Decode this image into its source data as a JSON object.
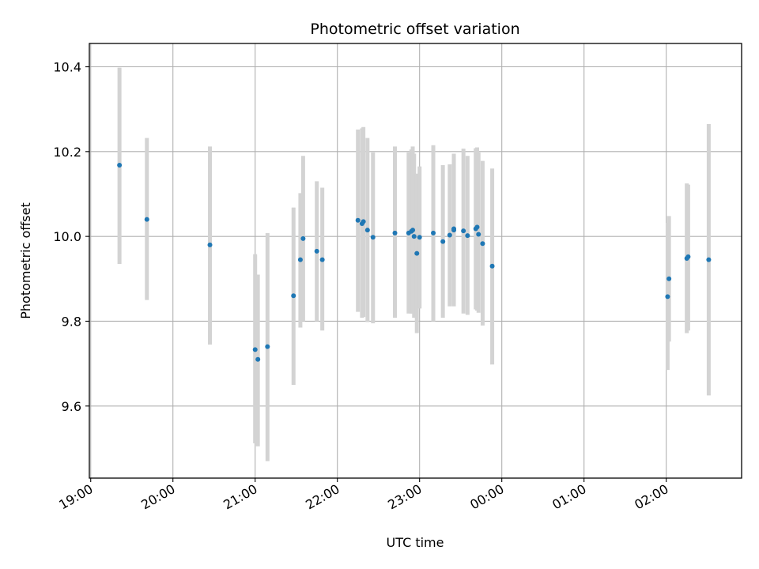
{
  "chart_data": {
    "type": "scatter",
    "title": "Photometric offset variation",
    "xlabel": "UTC time",
    "ylabel": "Photometric offset",
    "grid": true,
    "xlim": [
      "18:59",
      "02:55"
    ],
    "ylim": [
      9.43,
      10.455
    ],
    "x_ticks": [
      "19:00",
      "20:00",
      "21:00",
      "22:00",
      "23:00",
      "00:00",
      "01:00",
      "02:00"
    ],
    "y_ticks": [
      9.6,
      9.8,
      10.0,
      10.2,
      10.4
    ],
    "y_tick_labels": [
      "9.6",
      "9.8",
      "10.0",
      "10.2",
      "10.4"
    ],
    "marker_color": "#1f77b4",
    "errorbar_color": "#d3d3d3",
    "points": [
      {
        "t": "19:21",
        "y": 10.168,
        "low": 9.935,
        "high": 10.398
      },
      {
        "t": "19:41",
        "y": 10.04,
        "low": 9.85,
        "high": 10.232
      },
      {
        "t": "20:27",
        "y": 9.98,
        "low": 9.745,
        "high": 10.212
      },
      {
        "t": "21:00",
        "y": 9.733,
        "low": 9.512,
        "high": 9.958
      },
      {
        "t": "21:02",
        "y": 9.71,
        "low": 9.505,
        "high": 9.91
      },
      {
        "t": "21:09",
        "y": 9.74,
        "low": 9.47,
        "high": 10.008
      },
      {
        "t": "21:28",
        "y": 9.86,
        "low": 9.65,
        "high": 10.068
      },
      {
        "t": "21:33",
        "y": 9.945,
        "low": 9.785,
        "high": 10.102
      },
      {
        "t": "21:35",
        "y": 9.995,
        "low": 9.8,
        "high": 10.19
      },
      {
        "t": "21:45",
        "y": 9.965,
        "low": 9.8,
        "high": 10.13
      },
      {
        "t": "21:49",
        "y": 9.945,
        "low": 9.778,
        "high": 10.115
      },
      {
        "t": "22:15",
        "y": 10.038,
        "low": 9.822,
        "high": 10.252
      },
      {
        "t": "22:18",
        "y": 10.03,
        "low": 9.808,
        "high": 10.255
      },
      {
        "t": "22:19",
        "y": 10.035,
        "low": 9.81,
        "high": 10.258
      },
      {
        "t": "22:22",
        "y": 10.015,
        "low": 9.798,
        "high": 10.232
      },
      {
        "t": "22:26",
        "y": 9.998,
        "low": 9.795,
        "high": 10.198
      },
      {
        "t": "22:42",
        "y": 10.008,
        "low": 9.808,
        "high": 10.212
      },
      {
        "t": "22:52",
        "y": 10.008,
        "low": 9.818,
        "high": 10.198
      },
      {
        "t": "22:54",
        "y": 10.012,
        "low": 9.818,
        "high": 10.205
      },
      {
        "t": "22:55",
        "y": 10.015,
        "low": 9.818,
        "high": 10.212
      },
      {
        "t": "22:56",
        "y": 10.0,
        "low": 9.808,
        "high": 10.195
      },
      {
        "t": "22:58",
        "y": 9.96,
        "low": 9.772,
        "high": 10.148
      },
      {
        "t": "23:00",
        "y": 9.998,
        "low": 9.83,
        "high": 10.165
      },
      {
        "t": "23:10",
        "y": 10.008,
        "low": 9.8,
        "high": 10.215
      },
      {
        "t": "23:17",
        "y": 9.988,
        "low": 9.808,
        "high": 10.168
      },
      {
        "t": "23:22",
        "y": 10.003,
        "low": 9.835,
        "high": 10.17
      },
      {
        "t": "23:25",
        "y": 10.015,
        "low": 9.835,
        "high": 10.195
      },
      {
        "t": "23:25",
        "y": 10.018,
        "low": 9.84,
        "high": 10.195
      },
      {
        "t": "23:32",
        "y": 10.013,
        "low": 9.818,
        "high": 10.207
      },
      {
        "t": "23:35",
        "y": 10.002,
        "low": 9.815,
        "high": 10.19
      },
      {
        "t": "23:41",
        "y": 10.018,
        "low": 9.828,
        "high": 10.208
      },
      {
        "t": "23:42",
        "y": 10.022,
        "low": 9.825,
        "high": 10.21
      },
      {
        "t": "23:43",
        "y": 10.005,
        "low": 9.82,
        "high": 10.198
      },
      {
        "t": "23:46",
        "y": 9.983,
        "low": 9.79,
        "high": 10.178
      },
      {
        "t": "23:53",
        "y": 9.93,
        "low": 9.698,
        "high": 10.16
      },
      {
        "t": "02:01",
        "y": 9.858,
        "low": 9.685,
        "high": 10.032
      },
      {
        "t": "02:02",
        "y": 9.9,
        "low": 9.752,
        "high": 10.048
      },
      {
        "t": "02:15",
        "y": 9.948,
        "low": 9.772,
        "high": 10.125
      },
      {
        "t": "02:16",
        "y": 9.952,
        "low": 9.778,
        "high": 10.122
      },
      {
        "t": "02:31",
        "y": 9.945,
        "low": 9.625,
        "high": 10.265
      }
    ]
  }
}
